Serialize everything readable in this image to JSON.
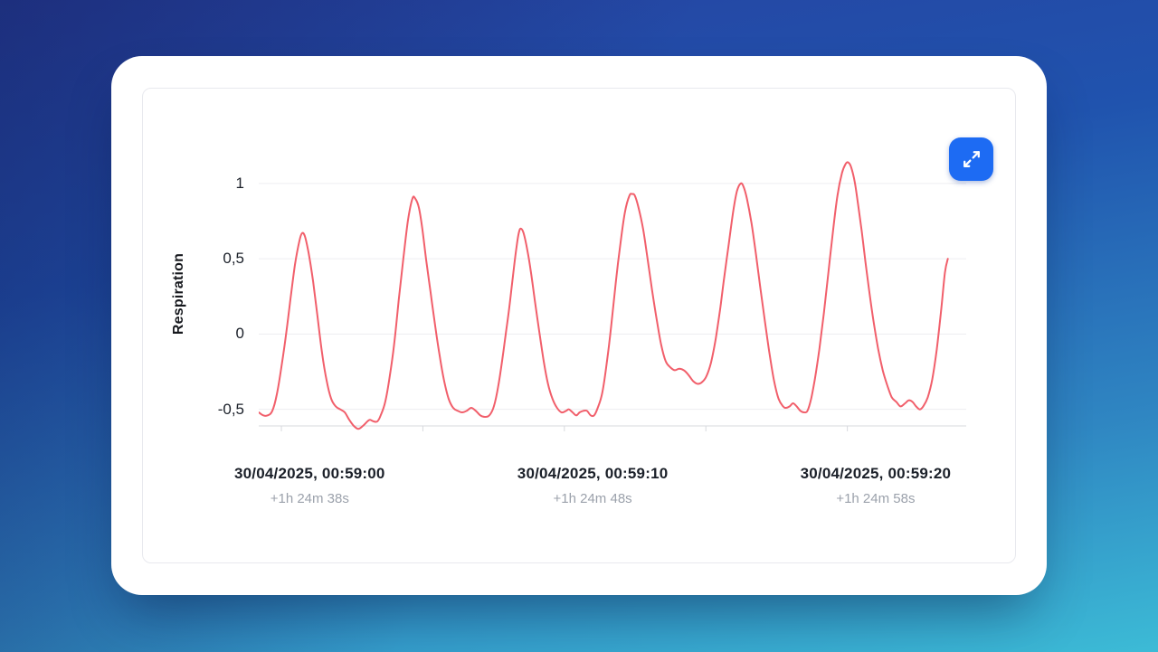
{
  "chart_card": {
    "expand_button": {
      "icon": "expand-arrows-icon",
      "color": "#1d6bf3"
    }
  },
  "chart_data": {
    "type": "line",
    "title": "",
    "xlabel": "",
    "ylabel": "Respiration",
    "grid": true,
    "legend": "none",
    "ylim": [
      -0.61,
      1.39
    ],
    "xlim_seconds": [
      -0.8,
      24.2
    ],
    "colors": {
      "line": "#f15f6b",
      "grid": "#ededf0",
      "axis": "#d7d9de",
      "tick_text": "#1b2029",
      "sub_text": "#9ba1ab"
    },
    "y_ticks": [
      {
        "value": 1,
        "label": "1"
      },
      {
        "value": 0.5,
        "label": "0,5"
      },
      {
        "value": 0,
        "label": "0"
      },
      {
        "value": -0.5,
        "label": "-0,5"
      }
    ],
    "x_ticks_seconds": [
      0,
      5,
      10,
      15,
      20
    ],
    "x_labels": [
      {
        "t": 1,
        "main": "30/04/2025, 00:59:00",
        "sub": "+1h 24m 38s"
      },
      {
        "t": 11,
        "main": "30/04/2025, 00:59:10",
        "sub": "+1h 24m 48s"
      },
      {
        "t": 21,
        "main": "30/04/2025, 00:59:20",
        "sub": "+1h 24m 58s"
      }
    ],
    "series": [
      {
        "name": "Respiration",
        "points": [
          [
            -0.8,
            -0.52
          ],
          [
            -0.64,
            -0.54
          ],
          [
            -0.48,
            -0.54
          ],
          [
            -0.32,
            -0.51
          ],
          [
            -0.16,
            -0.4
          ],
          [
            0,
            -0.22
          ],
          [
            0.16,
            -0.01
          ],
          [
            0.32,
            0.23
          ],
          [
            0.48,
            0.46
          ],
          [
            0.64,
            0.62
          ],
          [
            0.73,
            0.67
          ],
          [
            0.83,
            0.65
          ],
          [
            0.96,
            0.54
          ],
          [
            1.12,
            0.35
          ],
          [
            1.28,
            0.11
          ],
          [
            1.44,
            -0.13
          ],
          [
            1.6,
            -0.31
          ],
          [
            1.76,
            -0.43
          ],
          [
            1.92,
            -0.48
          ],
          [
            2.08,
            -0.5
          ],
          [
            2.24,
            -0.52
          ],
          [
            2.4,
            -0.57
          ],
          [
            2.56,
            -0.61
          ],
          [
            2.72,
            -0.63
          ],
          [
            2.88,
            -0.61
          ],
          [
            3.04,
            -0.58
          ],
          [
            3.13,
            -0.57
          ],
          [
            3.26,
            -0.58
          ],
          [
            3.39,
            -0.58
          ],
          [
            3.51,
            -0.54
          ],
          [
            3.67,
            -0.45
          ],
          [
            3.83,
            -0.28
          ],
          [
            3.99,
            -0.06
          ],
          [
            4.15,
            0.23
          ],
          [
            4.31,
            0.5
          ],
          [
            4.47,
            0.75
          ],
          [
            4.63,
            0.9
          ],
          [
            4.73,
            0.9
          ],
          [
            4.86,
            0.84
          ],
          [
            4.98,
            0.7
          ],
          [
            5.11,
            0.5
          ],
          [
            5.27,
            0.28
          ],
          [
            5.43,
            0.06
          ],
          [
            5.59,
            -0.14
          ],
          [
            5.75,
            -0.31
          ],
          [
            5.91,
            -0.43
          ],
          [
            6.07,
            -0.49
          ],
          [
            6.23,
            -0.51
          ],
          [
            6.39,
            -0.52
          ],
          [
            6.55,
            -0.51
          ],
          [
            6.71,
            -0.49
          ],
          [
            6.87,
            -0.51
          ],
          [
            7.03,
            -0.54
          ],
          [
            7.19,
            -0.55
          ],
          [
            7.35,
            -0.54
          ],
          [
            7.51,
            -0.48
          ],
          [
            7.67,
            -0.34
          ],
          [
            7.83,
            -0.14
          ],
          [
            7.92,
            -0.01
          ],
          [
            8.05,
            0.17
          ],
          [
            8.18,
            0.38
          ],
          [
            8.31,
            0.58
          ],
          [
            8.4,
            0.68
          ],
          [
            8.47,
            0.7
          ],
          [
            8.56,
            0.67
          ],
          [
            8.69,
            0.56
          ],
          [
            8.82,
            0.41
          ],
          [
            8.95,
            0.23
          ],
          [
            9.11,
            0.02
          ],
          [
            9.27,
            -0.18
          ],
          [
            9.42,
            -0.33
          ],
          [
            9.58,
            -0.43
          ],
          [
            9.74,
            -0.49
          ],
          [
            9.9,
            -0.52
          ],
          [
            10.06,
            -0.51
          ],
          [
            10.16,
            -0.5
          ],
          [
            10.29,
            -0.52
          ],
          [
            10.42,
            -0.54
          ],
          [
            10.54,
            -0.52
          ],
          [
            10.67,
            -0.51
          ],
          [
            10.8,
            -0.51
          ],
          [
            10.93,
            -0.54
          ],
          [
            11.05,
            -0.54
          ],
          [
            11.18,
            -0.49
          ],
          [
            11.34,
            -0.39
          ],
          [
            11.5,
            -0.19
          ],
          [
            11.66,
            0.06
          ],
          [
            11.82,
            0.35
          ],
          [
            11.98,
            0.6
          ],
          [
            12.14,
            0.81
          ],
          [
            12.3,
            0.92
          ],
          [
            12.4,
            0.93
          ],
          [
            12.49,
            0.92
          ],
          [
            12.62,
            0.84
          ],
          [
            12.78,
            0.7
          ],
          [
            12.94,
            0.5
          ],
          [
            13.1,
            0.29
          ],
          [
            13.26,
            0.1
          ],
          [
            13.42,
            -0.07
          ],
          [
            13.58,
            -0.18
          ],
          [
            13.74,
            -0.22
          ],
          [
            13.9,
            -0.24
          ],
          [
            14.06,
            -0.23
          ],
          [
            14.22,
            -0.24
          ],
          [
            14.38,
            -0.27
          ],
          [
            14.54,
            -0.31
          ],
          [
            14.7,
            -0.33
          ],
          [
            14.86,
            -0.32
          ],
          [
            15.02,
            -0.28
          ],
          [
            15.18,
            -0.19
          ],
          [
            15.34,
            -0.04
          ],
          [
            15.5,
            0.16
          ],
          [
            15.65,
            0.38
          ],
          [
            15.81,
            0.6
          ],
          [
            15.97,
            0.82
          ],
          [
            16.1,
            0.95
          ],
          [
            16.23,
            1.0
          ],
          [
            16.33,
            0.98
          ],
          [
            16.45,
            0.9
          ],
          [
            16.61,
            0.74
          ],
          [
            16.77,
            0.53
          ],
          [
            16.93,
            0.3
          ],
          [
            17.09,
            0.08
          ],
          [
            17.25,
            -0.13
          ],
          [
            17.41,
            -0.31
          ],
          [
            17.57,
            -0.43
          ],
          [
            17.73,
            -0.48
          ],
          [
            17.83,
            -0.49
          ],
          [
            17.96,
            -0.48
          ],
          [
            18.08,
            -0.46
          ],
          [
            18.21,
            -0.48
          ],
          [
            18.34,
            -0.51
          ],
          [
            18.47,
            -0.52
          ],
          [
            18.59,
            -0.51
          ],
          [
            18.72,
            -0.43
          ],
          [
            18.85,
            -0.3
          ],
          [
            19.01,
            -0.1
          ],
          [
            19.17,
            0.14
          ],
          [
            19.33,
            0.41
          ],
          [
            19.49,
            0.68
          ],
          [
            19.65,
            0.92
          ],
          [
            19.81,
            1.07
          ],
          [
            19.94,
            1.13
          ],
          [
            20.03,
            1.14
          ],
          [
            20.13,
            1.11
          ],
          [
            20.26,
            1.01
          ],
          [
            20.38,
            0.86
          ],
          [
            20.51,
            0.68
          ],
          [
            20.64,
            0.48
          ],
          [
            20.77,
            0.29
          ],
          [
            20.93,
            0.08
          ],
          [
            21.09,
            -0.1
          ],
          [
            21.25,
            -0.24
          ],
          [
            21.41,
            -0.34
          ],
          [
            21.57,
            -0.42
          ],
          [
            21.73,
            -0.45
          ],
          [
            21.88,
            -0.48
          ],
          [
            22.04,
            -0.46
          ],
          [
            22.17,
            -0.44
          ],
          [
            22.3,
            -0.45
          ],
          [
            22.43,
            -0.48
          ],
          [
            22.56,
            -0.5
          ],
          [
            22.68,
            -0.48
          ],
          [
            22.84,
            -0.42
          ],
          [
            23,
            -0.3
          ],
          [
            23.16,
            -0.1
          ],
          [
            23.32,
            0.17
          ],
          [
            23.45,
            0.41
          ],
          [
            23.55,
            0.5
          ]
        ]
      }
    ]
  }
}
